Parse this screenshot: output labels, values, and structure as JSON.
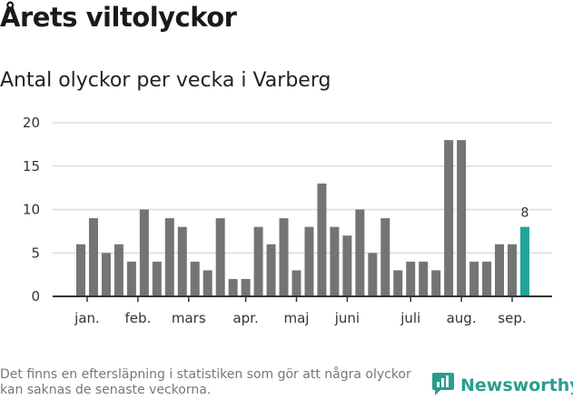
{
  "title": "Årets viltolyckor",
  "subtitle": "Antal olyckor per vecka i Varberg",
  "footnote": "Det finns en eftersläpning i statistiken som gör att några olyckor kan saknas de senaste veckorna.",
  "brand": "Newsworthy",
  "colors": {
    "bar": "#747477",
    "highlight": "#20a39a",
    "grid": "#dddddd",
    "axis": "#333333",
    "brand": "#2a9d8f"
  },
  "chart_data": {
    "type": "bar",
    "title": "Antal olyckor per vecka i Varberg",
    "xlabel": "",
    "ylabel": "",
    "ylim": [
      0,
      20
    ],
    "yticks": [
      0,
      5,
      10,
      15,
      20
    ],
    "grid": true,
    "values": [
      6,
      9,
      5,
      6,
      4,
      10,
      4,
      9,
      8,
      4,
      3,
      9,
      2,
      2,
      8,
      6,
      9,
      3,
      8,
      13,
      8,
      7,
      10,
      5,
      9,
      3,
      4,
      4,
      3,
      18,
      18,
      4,
      4,
      6,
      6,
      8
    ],
    "highlight_last": true,
    "last_value_label": "8",
    "month_labels": [
      {
        "label": "jan.",
        "at": 0.5
      },
      {
        "label": "feb.",
        "at": 4.5
      },
      {
        "label": "mars",
        "at": 8.5
      },
      {
        "label": "apr.",
        "at": 13.0
      },
      {
        "label": "maj",
        "at": 17.0
      },
      {
        "label": "juni",
        "at": 21.0
      },
      {
        "label": "juli",
        "at": 26.0
      },
      {
        "label": "aug.",
        "at": 30.0
      },
      {
        "label": "sep.",
        "at": 34.0
      }
    ]
  }
}
